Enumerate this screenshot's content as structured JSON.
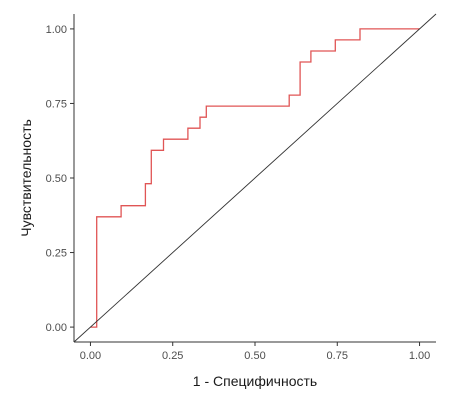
{
  "chart_data": {
    "type": "line",
    "title": "",
    "xlabel": "1 - Специфичность",
    "ylabel": "Чувствительность",
    "xlim": [
      -0.05,
      1.05
    ],
    "ylim": [
      -0.05,
      1.05
    ],
    "grid": false,
    "legend": "none",
    "x_ticks": [
      0.0,
      0.25,
      0.5,
      0.75,
      1.0
    ],
    "x_tick_labels": [
      "0.00",
      "0.25",
      "0.50",
      "0.75",
      "1.00"
    ],
    "y_ticks": [
      0.0,
      0.25,
      0.5,
      0.75,
      1.0
    ],
    "y_tick_labels": [
      "0.00",
      "0.25",
      "0.50",
      "0.75",
      "1.00"
    ],
    "series": [
      {
        "style": "step",
        "color": "#e05555",
        "x": [
          0.0,
          0.019,
          0.019,
          0.093,
          0.093,
          0.167,
          0.167,
          0.185,
          0.185,
          0.222,
          0.222,
          0.296,
          0.296,
          0.333,
          0.333,
          0.352,
          0.352,
          0.604,
          0.604,
          0.637,
          0.637,
          0.67,
          0.67,
          0.744,
          0.744,
          0.819,
          0.819,
          1.0
        ],
        "y": [
          0.0,
          0.0,
          0.37,
          0.37,
          0.407,
          0.407,
          0.481,
          0.481,
          0.593,
          0.593,
          0.63,
          0.63,
          0.667,
          0.667,
          0.704,
          0.704,
          0.741,
          0.741,
          0.778,
          0.778,
          0.889,
          0.889,
          0.926,
          0.926,
          0.963,
          0.963,
          1.0,
          1.0
        ]
      },
      {
        "style": "reference",
        "color": "#333333",
        "x": [
          -0.05,
          1.05
        ],
        "y": [
          -0.05,
          1.05
        ]
      }
    ]
  }
}
